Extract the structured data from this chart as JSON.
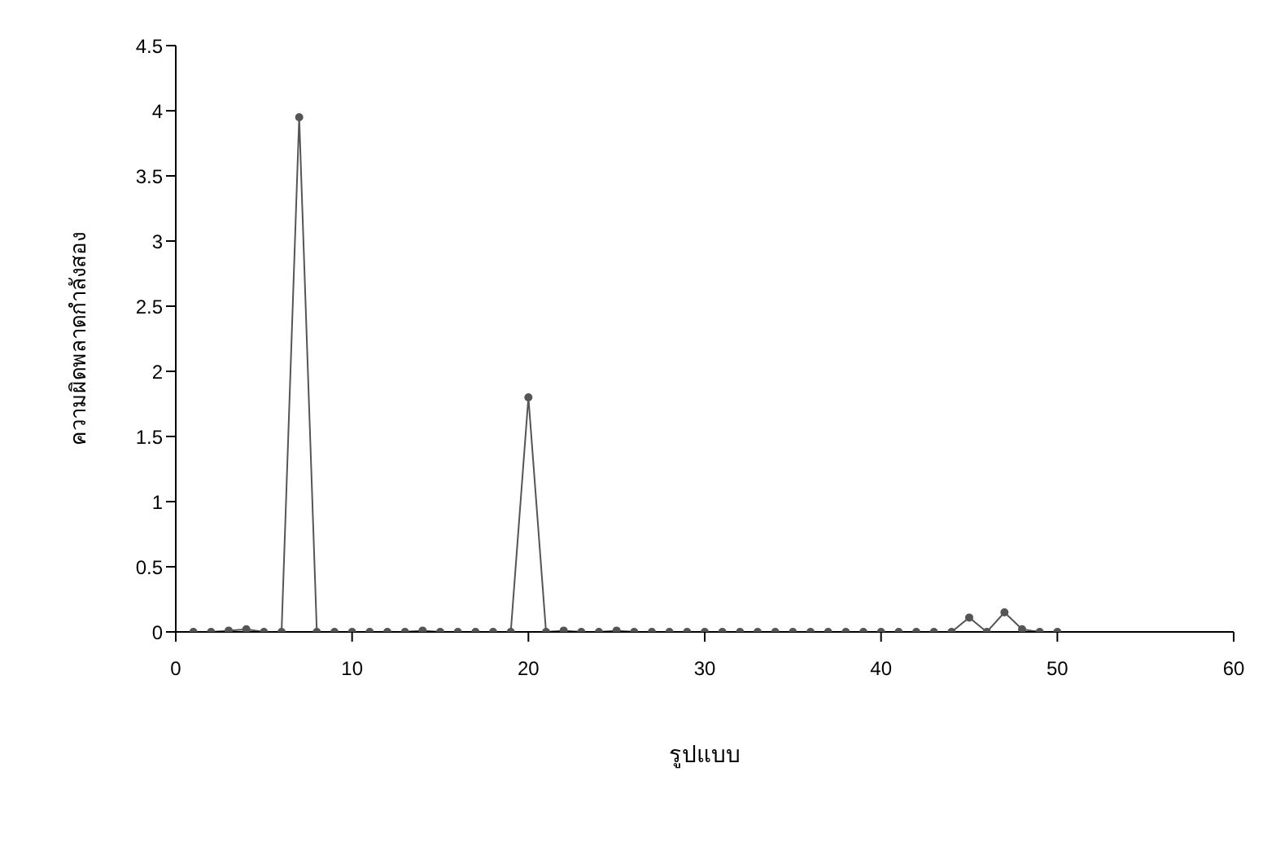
{
  "chart_data": {
    "type": "line",
    "xlabel": "รูปแบบ",
    "ylabel": "ความผิดพลาดกำลังสอง",
    "x": [
      1,
      2,
      3,
      4,
      5,
      6,
      7,
      8,
      9,
      10,
      11,
      12,
      13,
      14,
      15,
      16,
      17,
      18,
      19,
      20,
      21,
      22,
      23,
      24,
      25,
      26,
      27,
      28,
      29,
      30,
      31,
      32,
      33,
      34,
      35,
      36,
      37,
      38,
      39,
      40,
      41,
      42,
      43,
      44,
      45,
      46,
      47,
      48,
      49,
      50
    ],
    "series": [
      {
        "color": "#555555",
        "values": [
          0,
          0,
          0.01,
          0.02,
          0,
          0,
          3.95,
          0,
          0,
          0,
          0,
          0,
          0,
          0.01,
          0,
          0,
          0,
          0,
          0,
          1.8,
          0,
          0.01,
          0,
          0,
          0.01,
          0,
          0,
          0,
          0,
          0,
          0,
          0,
          0,
          0,
          0,
          0,
          0,
          0,
          0,
          0,
          0,
          0,
          0,
          0,
          0.11,
          0,
          0.15,
          0.02,
          0,
          0
        ]
      }
    ],
    "xlim": [
      0,
      60
    ],
    "xticks": [
      0,
      10,
      20,
      30,
      40,
      50,
      60
    ],
    "ylim": [
      0,
      4.5
    ],
    "yticks": [
      0,
      0.5,
      1,
      1.5,
      2,
      2.5,
      3,
      3.5,
      4,
      4.5
    ],
    "grid": false,
    "legend": false,
    "marker": "circle",
    "line_style": "solid"
  }
}
